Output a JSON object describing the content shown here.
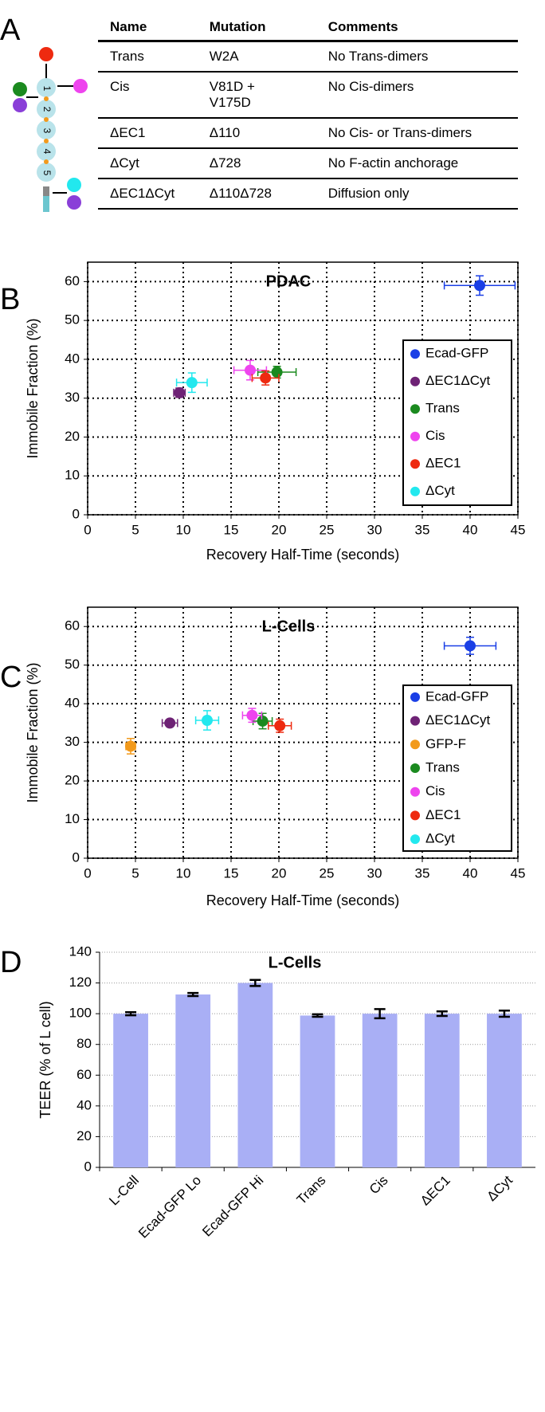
{
  "panel_labels": [
    "A",
    "B",
    "C",
    "D"
  ],
  "schematic": {
    "domains": [
      "1",
      "2",
      "3",
      "4",
      "5"
    ]
  },
  "table": {
    "header": [
      "Name",
      "Mutation",
      "Comments"
    ],
    "rows": [
      [
        "Trans",
        "W2A",
        "No Trans-dimers"
      ],
      [
        "Cis",
        "V81D + V175D",
        "No Cis-dimers"
      ],
      [
        "ΔEC1",
        "Δ110",
        "No Cis- or Trans-dimers"
      ],
      [
        "ΔCyt",
        "Δ728",
        "No F-actin anchorage"
      ],
      [
        "ΔEC1ΔCyt",
        "Δ110Δ728",
        "Diffusion only"
      ]
    ]
  },
  "chart_data": [
    {
      "type": "scatter",
      "title": "PDAC",
      "x_label": "Recovery Half-Time (seconds)",
      "y_label": "Immobile Fraction (%)",
      "xlim": [
        0,
        45
      ],
      "ylim": [
        0,
        65
      ],
      "xticks": [
        0,
        5,
        10,
        15,
        20,
        25,
        30,
        35,
        40,
        45
      ],
      "yticks": [
        0,
        10,
        20,
        30,
        40,
        50,
        60
      ],
      "grid": true,
      "legend": "right",
      "series": [
        {
          "name": "Ecad-GFP",
          "color": "#1a3fe6",
          "x": 41,
          "y": 59,
          "x_err": 3.7,
          "y_err": 2.5
        },
        {
          "name": "ΔEC1ΔCyt",
          "color": "#6e2275",
          "x": 9.6,
          "y": 31.4,
          "x_err": 0.6,
          "y_err": 1.2
        },
        {
          "name": "Trans",
          "color": "#1b8a1f",
          "x": 19.8,
          "y": 36.7,
          "x_err": 2,
          "y_err": 1.5
        },
        {
          "name": "Cis",
          "color": "#ee44ee",
          "x": 17,
          "y": 37.2,
          "x_err": 1.7,
          "y_err": 2.5
        },
        {
          "name": "ΔEC1",
          "color": "#ee2a10",
          "x": 18.6,
          "y": 35.2,
          "x_err": 1.4,
          "y_err": 1.8
        },
        {
          "name": "ΔCyt",
          "color": "#22e8ee",
          "x": 10.9,
          "y": 34,
          "x_err": 1.6,
          "y_err": 2.5
        }
      ]
    },
    {
      "type": "scatter",
      "title": "L-Cells",
      "x_label": "Recovery Half-Time (seconds)",
      "y_label": "Immobile Fraction (%)",
      "xlim": [
        0,
        45
      ],
      "ylim": [
        0,
        65
      ],
      "xticks": [
        0,
        5,
        10,
        15,
        20,
        25,
        30,
        35,
        40,
        45
      ],
      "yticks": [
        0,
        10,
        20,
        30,
        40,
        50,
        60
      ],
      "grid": true,
      "legend": "right",
      "series": [
        {
          "name": "Ecad-GFP",
          "color": "#1a3fe6",
          "x": 40,
          "y": 55,
          "x_err": 2.7,
          "y_err": 2.2
        },
        {
          "name": "ΔEC1ΔCyt",
          "color": "#6e2275",
          "x": 8.6,
          "y": 35,
          "x_err": 0.8,
          "y_err": 0.8
        },
        {
          "name": "GFP-F",
          "color": "#f29a1c",
          "x": 4.5,
          "y": 29,
          "x_err": 0.5,
          "y_err": 2
        },
        {
          "name": "Trans",
          "color": "#1b8a1f",
          "x": 18.3,
          "y": 35.5,
          "x_err": 1,
          "y_err": 2
        },
        {
          "name": "Cis",
          "color": "#ee44ee",
          "x": 17.2,
          "y": 37,
          "x_err": 1,
          "y_err": 1.8
        },
        {
          "name": "ΔEC1",
          "color": "#ee2a10",
          "x": 20.1,
          "y": 34.3,
          "x_err": 1.2,
          "y_err": 1.7
        },
        {
          "name": "ΔCyt",
          "color": "#22e8ee",
          "x": 12.5,
          "y": 35.7,
          "x_err": 1.2,
          "y_err": 2.5
        }
      ]
    },
    {
      "type": "bar",
      "title": "L-Cells",
      "y_label": "TEER (% of L cell)",
      "categories": [
        "L-Cell",
        "Ecad-GFP Lo",
        "Ecad-GFP Hi",
        "Trans",
        "Cis",
        "ΔEC1",
        "ΔCyt"
      ],
      "values": [
        100,
        112.5,
        120,
        98.8,
        100,
        100,
        100
      ],
      "errors": [
        1,
        1,
        2,
        0.8,
        3,
        1.5,
        2
      ],
      "color": "#a9aff5",
      "ylim": [
        0,
        140
      ],
      "yticks": [
        0,
        20,
        40,
        60,
        80,
        100,
        120,
        140
      ],
      "grid": true
    }
  ]
}
